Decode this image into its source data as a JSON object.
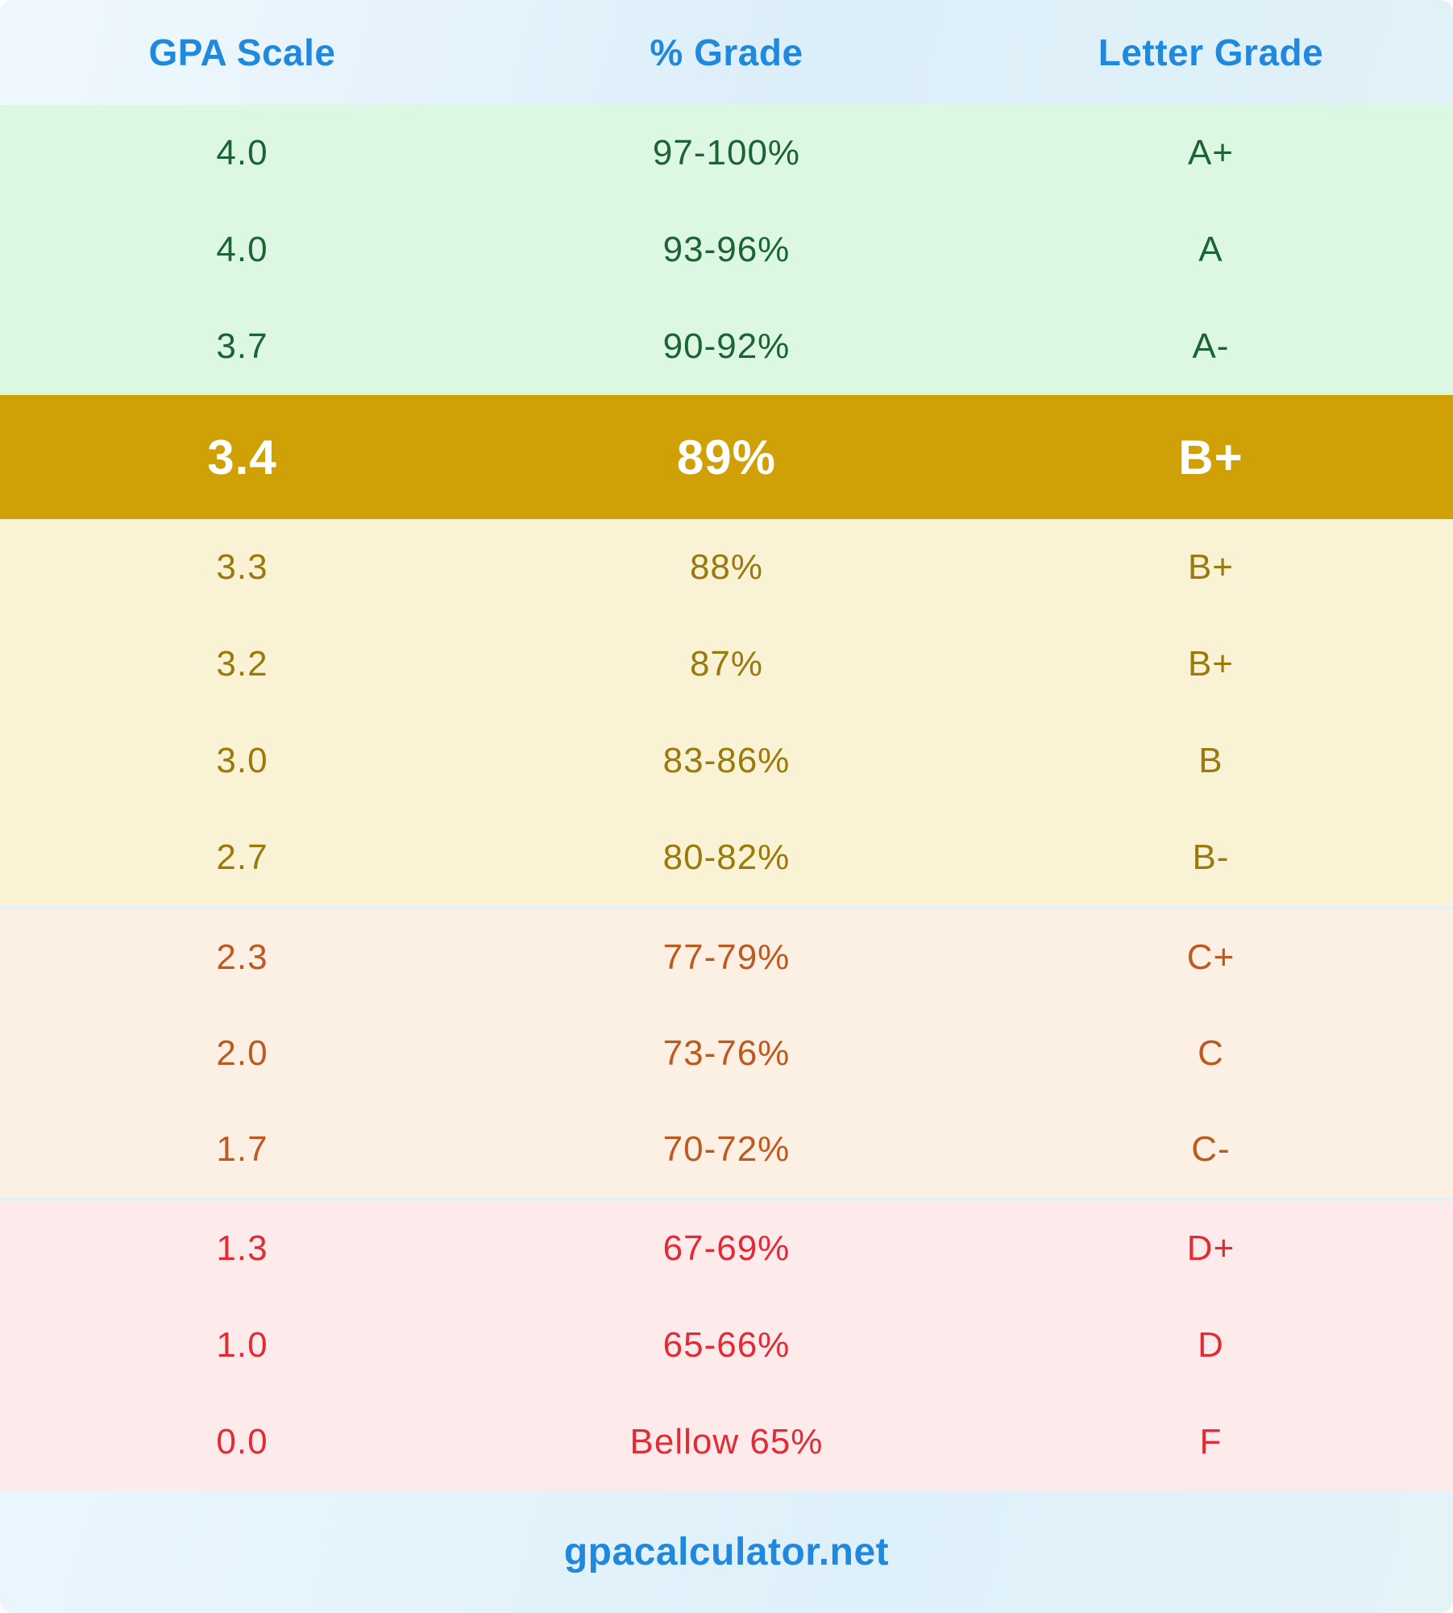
{
  "table": {
    "columns": [
      "GPA Scale",
      "% Grade",
      "Letter Grade"
    ],
    "rows": [
      {
        "gpa": "4.0",
        "pct": "97-100%",
        "letter": "A+"
      },
      {
        "gpa": "4.0",
        "pct": "93-96%",
        "letter": "A"
      },
      {
        "gpa": "3.7",
        "pct": "90-92%",
        "letter": "A-"
      },
      {
        "gpa": "3.4",
        "pct": "89%",
        "letter": "B+"
      },
      {
        "gpa": "3.3",
        "pct": "88%",
        "letter": "B+"
      },
      {
        "gpa": "3.2",
        "pct": "87%",
        "letter": "B+"
      },
      {
        "gpa": "3.0",
        "pct": "83-86%",
        "letter": "B"
      },
      {
        "gpa": "2.7",
        "pct": "80-82%",
        "letter": "B-"
      },
      {
        "gpa": "2.3",
        "pct": "77-79%",
        "letter": "C+"
      },
      {
        "gpa": "2.0",
        "pct": "73-76%",
        "letter": "C"
      },
      {
        "gpa": "1.7",
        "pct": "70-72%",
        "letter": "C-"
      },
      {
        "gpa": "1.3",
        "pct": "67-69%",
        "letter": "D+"
      },
      {
        "gpa": "1.0",
        "pct": "65-66%",
        "letter": "D"
      },
      {
        "gpa": "0.0",
        "pct": "Bellow 65%",
        "letter": "F"
      }
    ],
    "highlighted_row_index": 3
  },
  "footer": {
    "site": "gpacalculator.net"
  },
  "colors": {
    "accent_blue": "#2189dd",
    "highlight_bg": "#d0a106",
    "highlight_text": "#ffffff",
    "a_section_bg": "#dcf8e3",
    "a_section_text": "#1c6434",
    "b_section_bg": "#f9f2d4",
    "b_section_text": "#9a7a0a",
    "c_section_bg": "#fcefe3",
    "c_section_text": "#bc5a20",
    "d_section_bg": "#fdebeb",
    "d_section_text": "#e22b35"
  }
}
